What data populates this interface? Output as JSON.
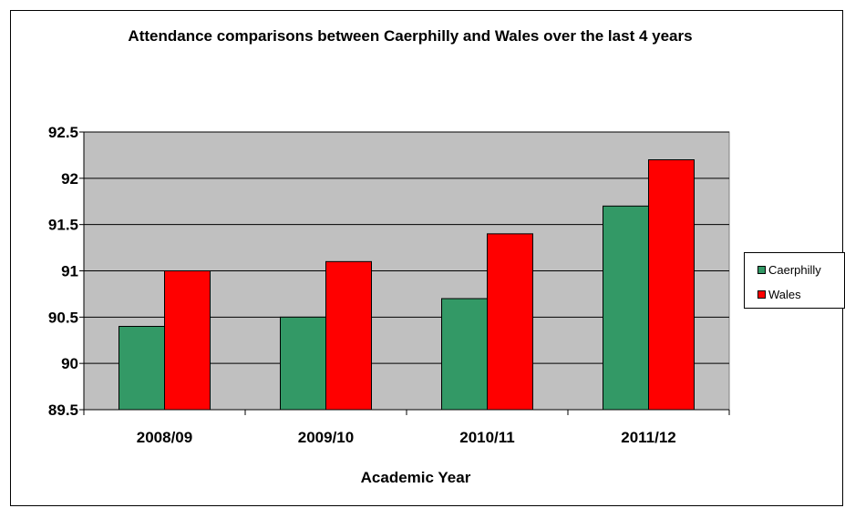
{
  "chart_data": {
    "type": "bar",
    "title": "Attendance comparisons between Caerphilly and Wales over the last 4 years",
    "xlabel": "Academic Year",
    "ylabel": "",
    "categories": [
      "2008/09",
      "2009/10",
      "2010/11",
      "2011/12"
    ],
    "series": [
      {
        "name": "Caerphilly",
        "values": [
          90.4,
          90.5,
          90.7,
          91.7
        ],
        "color": "#339966"
      },
      {
        "name": "Wales",
        "values": [
          91.0,
          91.1,
          91.4,
          92.2
        ],
        "color": "#FF0000"
      }
    ],
    "ylim": [
      89.5,
      92.5
    ],
    "yticks": [
      "89.5",
      "90",
      "90.5",
      "91",
      "91.5",
      "92",
      "92.5"
    ],
    "grid": true,
    "plot_background": "#C0C0C0",
    "legend_position": "right"
  }
}
